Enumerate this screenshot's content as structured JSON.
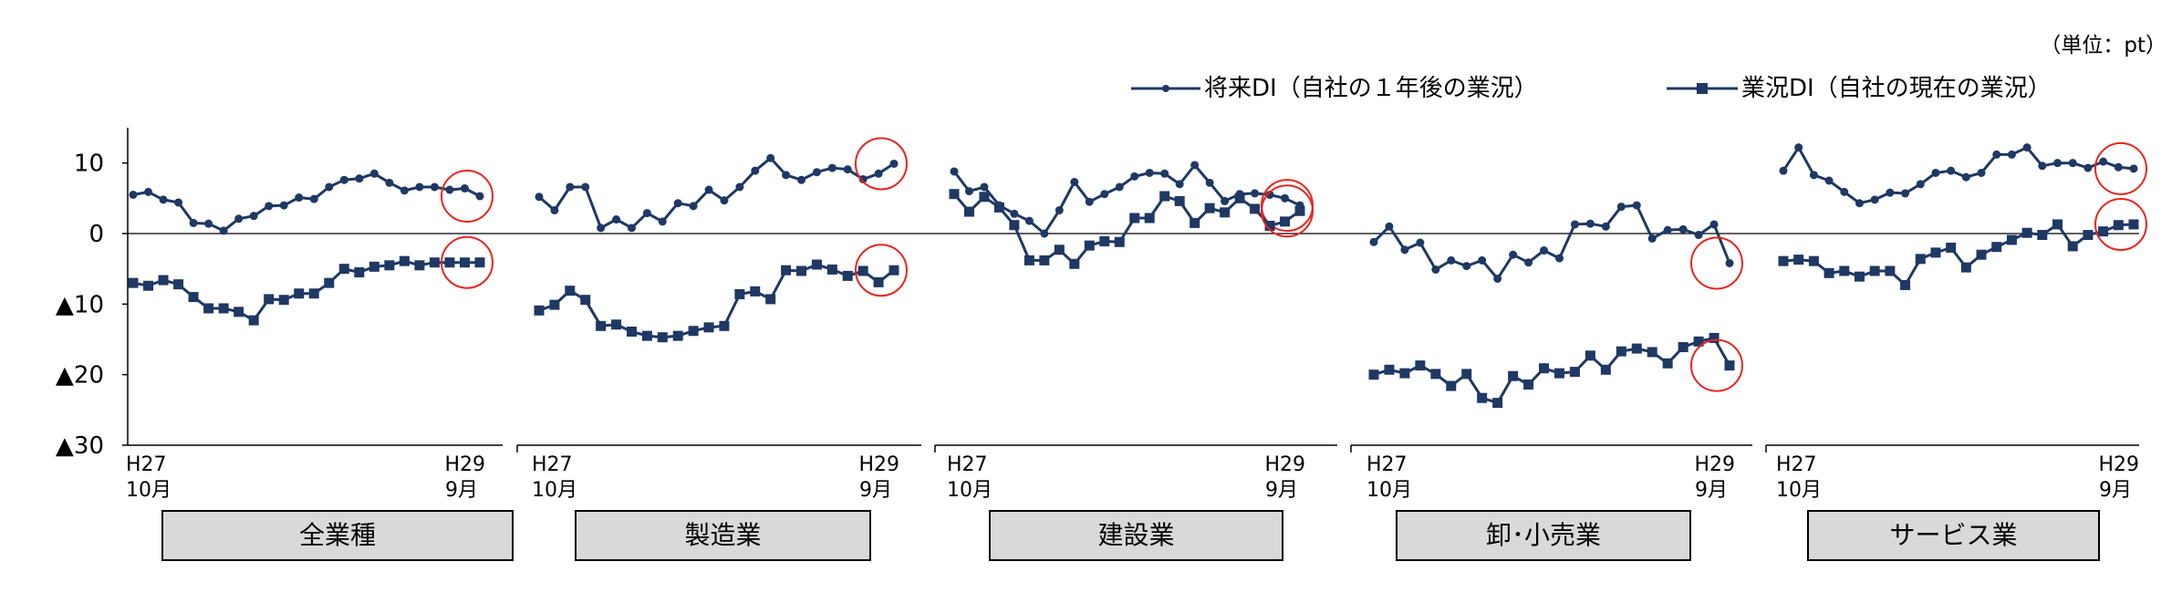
{
  "unit_label": "（単位：pt）",
  "legend": [
    {
      "label": "将来DI（自社の１年後の業況）",
      "marker": "circle"
    },
    {
      "label": "業況DI（自社の現在の業況）",
      "marker": "square"
    }
  ],
  "colors": {
    "series": "#1f3864",
    "highlight": "#e8251f",
    "axis": "#000000",
    "category_box": "#d9d9d9"
  },
  "chart_data": {
    "type": "line",
    "title": "",
    "ylim": [
      -30,
      15
    ],
    "yticks": [
      {
        "value": 10,
        "label": "10"
      },
      {
        "value": 0,
        "label": "0"
      },
      {
        "value": -10,
        "label": "▲10"
      },
      {
        "value": -20,
        "label": "▲20"
      },
      {
        "value": -30,
        "label": "▲30"
      }
    ],
    "x_start": {
      "year": "H27",
      "month": "10月"
    },
    "x_end": {
      "year": "H29",
      "month": "9月"
    },
    "panels": [
      {
        "category": "全業種",
        "series": [
          {
            "name": "将来DI（自社の１年後の業況）",
            "values": [
              5.5,
              5.9,
              4.8,
              4.4,
              1.5,
              1.4,
              0.4,
              2.1,
              2.5,
              3.9,
              4.0,
              5.1,
              4.9,
              6.6,
              7.6,
              7.8,
              8.5,
              7.2,
              6.1,
              6.6,
              6.6,
              6.2,
              6.4,
              5.3
            ]
          },
          {
            "name": "業況DI（自社の現在の業況）",
            "values": [
              -7.0,
              -7.4,
              -6.6,
              -7.2,
              -9.0,
              -10.6,
              -10.6,
              -11.1,
              -12.3,
              -9.3,
              -9.4,
              -8.5,
              -8.5,
              -7.0,
              -5.0,
              -5.5,
              -4.7,
              -4.5,
              -3.9,
              -4.5,
              -4.1,
              -4.1,
              -4.1,
              -4.1
            ]
          }
        ]
      },
      {
        "category": "製造業",
        "series": [
          {
            "name": "将来DI（自社の１年後の業況）",
            "values": [
              5.2,
              3.3,
              6.6,
              6.6,
              0.8,
              2.0,
              0.8,
              2.9,
              1.7,
              4.3,
              3.9,
              6.2,
              4.7,
              6.6,
              8.9,
              10.7,
              8.3,
              7.6,
              8.7,
              9.3,
              9.1,
              7.7,
              8.5,
              9.9
            ]
          },
          {
            "name": "業況DI（自社の現在の業況）",
            "values": [
              -10.9,
              -10.1,
              -8.1,
              -9.4,
              -13.1,
              -12.9,
              -13.9,
              -14.5,
              -14.7,
              -14.5,
              -13.8,
              -13.3,
              -13.1,
              -8.6,
              -8.2,
              -9.3,
              -5.2,
              -5.3,
              -4.4,
              -5.1,
              -6.0,
              -5.3,
              -6.9,
              -5.2
            ]
          }
        ]
      },
      {
        "category": "建設業",
        "series": [
          {
            "name": "将来DI（自社の１年後の業況）",
            "values": [
              8.8,
              6.0,
              6.6,
              4.0,
              2.8,
              1.8,
              0.0,
              3.3,
              7.3,
              4.5,
              5.6,
              6.6,
              8.1,
              8.6,
              8.5,
              7.0,
              9.7,
              7.2,
              4.6,
              5.6,
              5.7,
              5.5,
              5.0,
              4.0
            ]
          },
          {
            "name": "業況DI（自社の現在の業況）",
            "values": [
              5.6,
              3.1,
              5.2,
              3.7,
              1.2,
              -3.8,
              -3.8,
              -2.3,
              -4.3,
              -1.7,
              -1.1,
              -1.2,
              2.2,
              2.2,
              5.3,
              4.6,
              1.5,
              3.6,
              3.0,
              5.0,
              3.5,
              1.1,
              1.7,
              3.2
            ]
          }
        ]
      },
      {
        "category": "卸･小売業",
        "series": [
          {
            "name": "将来DI（自社の１年後の業況）",
            "values": [
              -1.2,
              1.0,
              -2.3,
              -1.3,
              -5.1,
              -3.8,
              -4.6,
              -3.8,
              -6.4,
              -3.0,
              -4.1,
              -2.4,
              -3.5,
              1.3,
              1.4,
              1.0,
              3.8,
              4.0,
              -0.7,
              0.5,
              0.6,
              -0.2,
              1.3,
              -4.2
            ]
          },
          {
            "name": "業況DI（自社の現在の業況）",
            "values": [
              -20.0,
              -19.3,
              -19.8,
              -18.7,
              -19.9,
              -21.6,
              -19.9,
              -23.3,
              -24.0,
              -20.2,
              -21.4,
              -19.1,
              -19.8,
              -19.6,
              -17.3,
              -19.3,
              -16.7,
              -16.3,
              -16.8,
              -18.4,
              -16.1,
              -15.3,
              -14.8,
              -18.7
            ]
          }
        ]
      },
      {
        "category": "サービス業",
        "series": [
          {
            "name": "将来DI（自社の１年後の業況）",
            "values": [
              8.9,
              12.2,
              8.3,
              7.5,
              5.9,
              4.3,
              4.8,
              5.8,
              5.7,
              7.0,
              8.6,
              8.9,
              8.0,
              8.6,
              11.2,
              11.2,
              12.2,
              9.6,
              10.0,
              10.0,
              9.3,
              10.2,
              9.4,
              9.2
            ]
          },
          {
            "name": "業況DI（自社の現在の業況）",
            "values": [
              -3.9,
              -3.7,
              -3.9,
              -5.6,
              -5.3,
              -6.1,
              -5.3,
              -5.3,
              -7.3,
              -3.6,
              -2.7,
              -2.0,
              -4.8,
              -3.0,
              -1.9,
              -0.9,
              0.1,
              -0.2,
              1.3,
              -1.8,
              -0.2,
              0.3,
              1.2,
              1.3
            ]
          }
        ]
      }
    ]
  }
}
